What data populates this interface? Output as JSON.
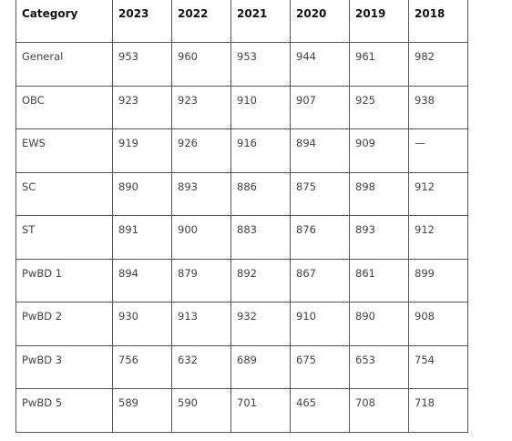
{
  "table": {
    "header": [
      "Category",
      "2023",
      "2022",
      "2021",
      "2020",
      "2019",
      "2018"
    ],
    "rows": [
      [
        "General",
        "953",
        "960",
        "953",
        "944",
        "961",
        "982"
      ],
      [
        "OBC",
        "923",
        "923",
        "910",
        "907",
        "925",
        "938"
      ],
      [
        "EWS",
        "919",
        "926",
        "916",
        "894",
        "909",
        "—"
      ],
      [
        "SC",
        "890",
        "893",
        "886",
        "875",
        "898",
        "912"
      ],
      [
        "ST",
        "891",
        "900",
        "883",
        "876",
        "893",
        "912"
      ],
      [
        "PwBD 1",
        "894",
        "879",
        "892",
        "867",
        "861",
        "899"
      ],
      [
        "PwBD 2",
        "930",
        "913",
        "932",
        "910",
        "890",
        "908"
      ],
      [
        "PwBD 3",
        "756",
        "632",
        "689",
        "675",
        "653",
        "754"
      ],
      [
        "PwBD 5",
        "589",
        "590",
        "701",
        "465",
        "708",
        "718"
      ]
    ]
  }
}
